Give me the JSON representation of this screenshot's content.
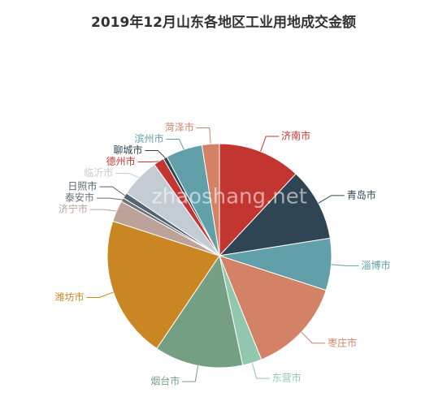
{
  "chart_data": {
    "type": "pie",
    "title": "2019年12月山东各地区工业用地成交金额",
    "watermark": "zhaoshang.net",
    "categories": [
      "济南市",
      "青岛市",
      "淄博市",
      "枣庄市",
      "东营市",
      "烟台市",
      "潍坊市",
      "济宁市",
      "泰安市",
      "日照市",
      "临沂市",
      "德州市",
      "聊城市",
      "滨州市",
      "菏泽市"
    ],
    "values": [
      43,
      38,
      27,
      50,
      10,
      46,
      74,
      11,
      2,
      3,
      20.5,
      5.5,
      2,
      19,
      9
    ],
    "colors": [
      "#c23531",
      "#2f4554",
      "#61a0a8",
      "#d48265",
      "#91c7ae",
      "#749f83",
      "#ca8622",
      "#bda29a",
      "#6e7074",
      "#546570",
      "#c4ccd3",
      "#c23531",
      "#2f4554",
      "#61a0a8",
      "#d48265"
    ]
  }
}
